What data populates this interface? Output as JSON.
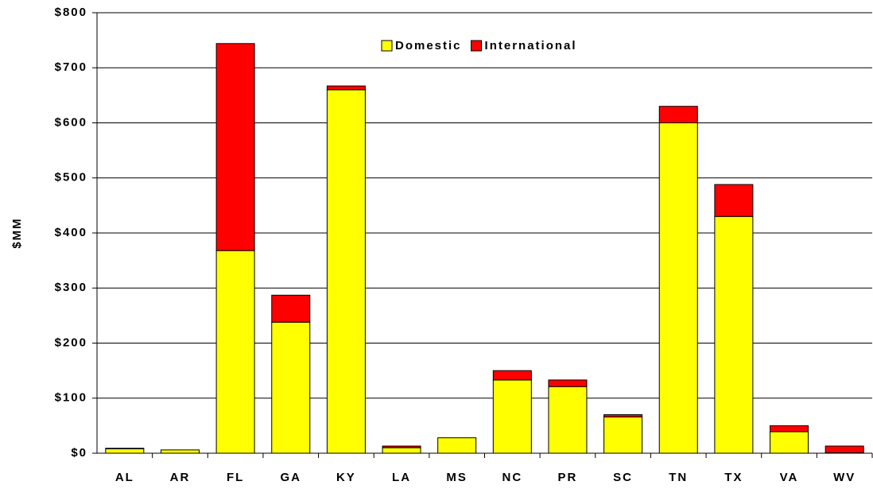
{
  "chart_data": {
    "type": "stacked_bar",
    "y_label": "$MM",
    "categories": [
      "AL",
      "AR",
      "FL",
      "GA",
      "KY",
      "LA",
      "MS",
      "NC",
      "PR",
      "SC",
      "TN",
      "TX",
      "VA",
      "WV"
    ],
    "series": [
      {
        "name": "Domestic",
        "color": "#ffff00",
        "values": [
          8,
          6,
          368,
          238,
          660,
          10,
          28,
          133,
          121,
          66,
          600,
          430,
          39,
          1
        ]
      },
      {
        "name": "International",
        "color": "#ff0000",
        "values": [
          1,
          0,
          376,
          49,
          7,
          3,
          0,
          17,
          12,
          4,
          30,
          58,
          11,
          12
        ]
      }
    ],
    "ylim": [
      0,
      800
    ],
    "yticks": [
      {
        "value": 0,
        "label": "$0"
      },
      {
        "value": 100,
        "label": "$100"
      },
      {
        "value": 200,
        "label": "$200"
      },
      {
        "value": 300,
        "label": "$300"
      },
      {
        "value": 400,
        "label": "$400"
      },
      {
        "value": 500,
        "label": "$500"
      },
      {
        "value": 600,
        "label": "$600"
      },
      {
        "value": 700,
        "label": "$700"
      },
      {
        "value": 800,
        "label": "$800"
      }
    ],
    "grid": true,
    "legend": "top"
  }
}
